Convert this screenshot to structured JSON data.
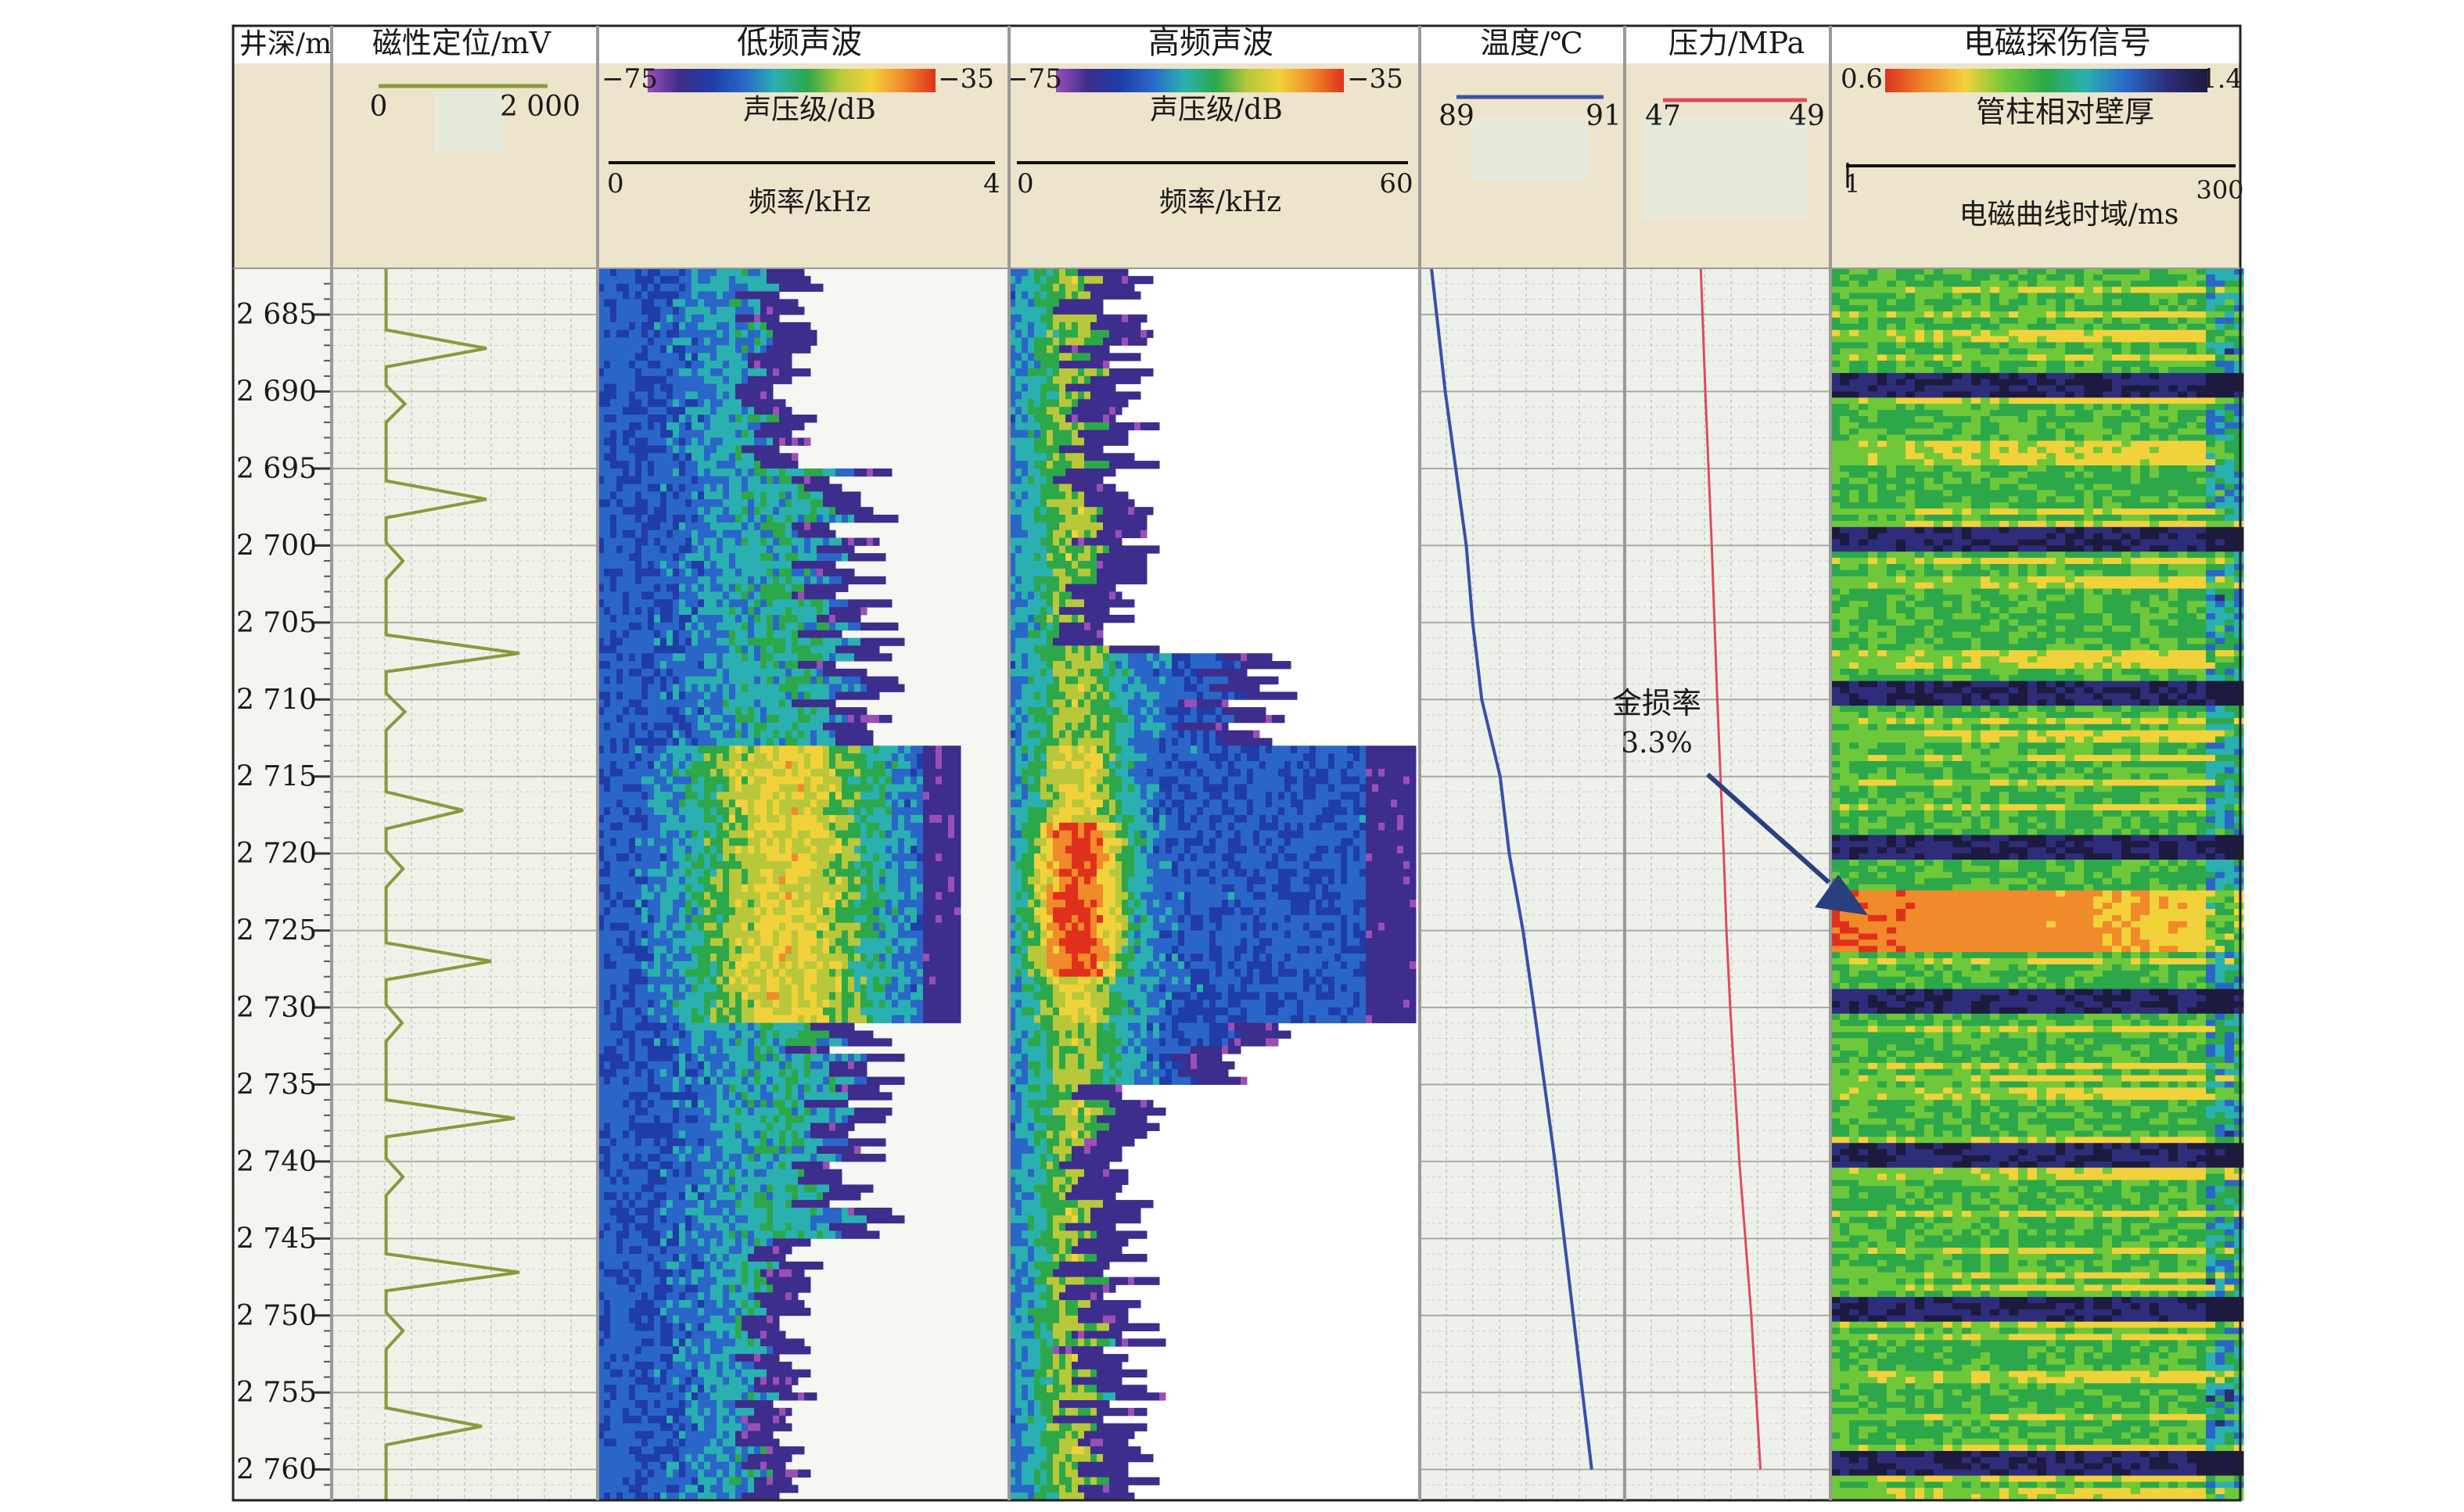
{
  "annotation": {
    "label": "金损率",
    "value": "3.3%",
    "color": "#2a3f7e"
  },
  "chart_data": {
    "type": "heatmap",
    "depth": {
      "header": "井深/m",
      "range": [
        2682,
        2762
      ],
      "ticks": [
        "2 685",
        "2 690",
        "2 695",
        "2 700",
        "2 705",
        "2 710",
        "2 715",
        "2 720",
        "2 725",
        "2 730",
        "2 735",
        "2 740",
        "2 745",
        "2 750",
        "2 755",
        "2 760"
      ],
      "tick_values": [
        2685,
        2690,
        2695,
        2700,
        2705,
        2710,
        2715,
        2720,
        2725,
        2730,
        2735,
        2740,
        2745,
        2750,
        2755,
        2760
      ]
    },
    "tracks": {
      "magnetic": {
        "header": "磁性定位/mV",
        "scale_min": "0",
        "scale_max": "2 000",
        "range": [
          0,
          2000
        ],
        "color": "#8a9a3a",
        "baseline": 280,
        "peaks": [
          {
            "depth": 2687.2,
            "value": 1350
          },
          {
            "depth": 2690.8,
            "value": 480
          },
          {
            "depth": 2697.0,
            "value": 1350
          },
          {
            "depth": 2701.0,
            "value": 460
          },
          {
            "depth": 2707.0,
            "value": 1700
          },
          {
            "depth": 2710.8,
            "value": 480
          },
          {
            "depth": 2717.2,
            "value": 1100
          },
          {
            "depth": 2721.0,
            "value": 460
          },
          {
            "depth": 2727.0,
            "value": 1400
          },
          {
            "depth": 2731.0,
            "value": 450
          },
          {
            "depth": 2737.2,
            "value": 1650
          },
          {
            "depth": 2741.0,
            "value": 460
          },
          {
            "depth": 2747.2,
            "value": 1700
          },
          {
            "depth": 2751.0,
            "value": 460
          },
          {
            "depth": 2757.2,
            "value": 1300
          }
        ]
      },
      "low_freq": {
        "header": "低频声波",
        "color_min": "−75",
        "color_max": "−35",
        "color_unit": "声压级/dB",
        "axis_min": "0",
        "axis_max": "4",
        "axis_label": "频率/kHz",
        "range": [
          0,
          4
        ]
      },
      "high_freq": {
        "header": "高频声波",
        "color_min": "−75",
        "color_max": "−35",
        "color_unit": "声压级/dB",
        "axis_min": "0",
        "axis_max": "60",
        "axis_label": "频率/kHz",
        "range": [
          0,
          60
        ]
      },
      "temperature": {
        "header": "温度/℃",
        "scale_min": "89",
        "scale_max": "91",
        "range": [
          89,
          91
        ],
        "color": "#3a4fa8",
        "curve": [
          [
            2682,
            89.0
          ],
          [
            2690,
            89.15
          ],
          [
            2700,
            89.38
          ],
          [
            2705,
            89.45
          ],
          [
            2710,
            89.55
          ],
          [
            2715,
            89.75
          ],
          [
            2720,
            89.85
          ],
          [
            2725,
            90.0
          ],
          [
            2730,
            90.12
          ],
          [
            2740,
            90.35
          ],
          [
            2750,
            90.55
          ],
          [
            2760,
            90.75
          ]
        ]
      },
      "pressure": {
        "header": "压力/MPa",
        "scale_min": "47",
        "scale_max": "49",
        "range": [
          47,
          49
        ],
        "color": "#e04a5c",
        "curve": [
          [
            2682,
            47.7
          ],
          [
            2690,
            47.75
          ],
          [
            2700,
            47.82
          ],
          [
            2710,
            47.88
          ],
          [
            2720,
            47.95
          ],
          [
            2725,
            47.98
          ],
          [
            2730,
            48.02
          ],
          [
            2740,
            48.12
          ],
          [
            2750,
            48.25
          ],
          [
            2760,
            48.35
          ]
        ]
      },
      "em": {
        "header": "电磁探伤信号",
        "color_min": "0.6",
        "color_max": "1.4",
        "color_label": "管柱相对壁厚",
        "axis_min": "1",
        "axis_max": "300",
        "axis_label": "电磁曲线时域/ms",
        "range": [
          1,
          300
        ]
      }
    },
    "colormaps": {
      "sound": [
        "#9a4fb5",
        "#3d2d8c",
        "#1f3ca8",
        "#2a66c8",
        "#2ab0b0",
        "#2ca84a",
        "#b8c83a",
        "#f2d23a",
        "#f08a2a",
        "#e0301c"
      ],
      "em": [
        "#e0301c",
        "#f08a2a",
        "#f2d23a",
        "#6ec83a",
        "#2ca84a",
        "#2ab0b0",
        "#2a66c8",
        "#2d2d7a",
        "#1c1a3e"
      ]
    }
  }
}
